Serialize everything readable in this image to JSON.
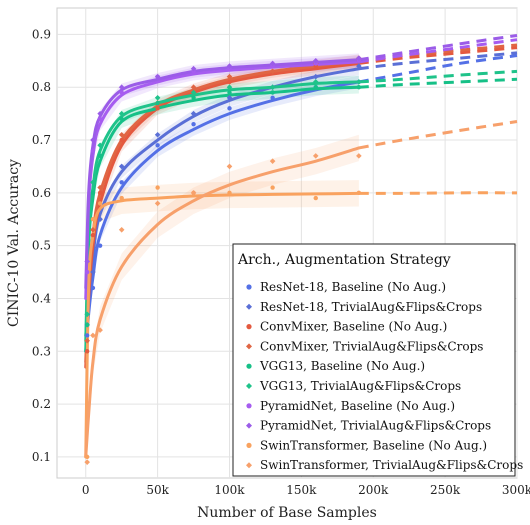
{
  "chart_data": {
    "type": "line",
    "xlabel": "Number of Base Samples",
    "ylabel": "CINIC-10 Val. Accuracy",
    "xlim": [
      -20000,
      300000
    ],
    "ylim": [
      0.06,
      0.95
    ],
    "x_ticks": [
      0,
      50000,
      100000,
      150000,
      200000,
      250000,
      300000
    ],
    "x_tick_labels": [
      "0",
      "50k",
      "100k",
      "150k",
      "200k",
      "250k",
      "300k"
    ],
    "y_ticks": [
      0.1,
      0.2,
      0.3,
      0.4,
      0.5,
      0.6,
      0.7,
      0.8,
      0.9
    ],
    "y_tick_labels": [
      "0.1",
      "0.2",
      "0.3",
      "0.4",
      "0.5",
      "0.6",
      "0.7",
      "0.8",
      "0.9"
    ],
    "grid": true,
    "observed_max_x": 190000,
    "legend": {
      "title": "Arch., Augmentation Strategy",
      "placement": "bottom-right"
    },
    "series": [
      {
        "name": "ResNet-18, Baseline (No Aug.)",
        "color": "#5470e6",
        "marker": "circle",
        "fit": [
          [
            0,
            0.3
          ],
          [
            2000,
            0.37
          ],
          [
            5000,
            0.44
          ],
          [
            10000,
            0.52
          ],
          [
            25000,
            0.61
          ],
          [
            50000,
            0.68
          ],
          [
            75000,
            0.72
          ],
          [
            100000,
            0.75
          ],
          [
            130000,
            0.775
          ],
          [
            160000,
            0.795
          ],
          [
            190000,
            0.81
          ],
          [
            220000,
            0.825
          ],
          [
            260000,
            0.845
          ],
          [
            300000,
            0.86
          ]
        ],
        "points": [
          [
            1000,
            0.33
          ],
          [
            5000,
            0.42
          ],
          [
            10000,
            0.5
          ],
          [
            25000,
            0.62
          ],
          [
            50000,
            0.69
          ],
          [
            75000,
            0.73
          ],
          [
            100000,
            0.76
          ],
          [
            130000,
            0.78
          ],
          [
            160000,
            0.8
          ],
          [
            190000,
            0.81
          ]
        ]
      },
      {
        "name": "ResNet-18, TrivialAug&Flips&Crops",
        "color": "#5a6fd6",
        "marker": "diamond",
        "fit": [
          [
            0,
            0.33
          ],
          [
            2000,
            0.4
          ],
          [
            5000,
            0.48
          ],
          [
            10000,
            0.56
          ],
          [
            25000,
            0.64
          ],
          [
            50000,
            0.7
          ],
          [
            75000,
            0.745
          ],
          [
            100000,
            0.775
          ],
          [
            130000,
            0.8
          ],
          [
            160000,
            0.82
          ],
          [
            190000,
            0.835
          ],
          [
            220000,
            0.845
          ],
          [
            260000,
            0.855
          ],
          [
            300000,
            0.865
          ]
        ],
        "points": [
          [
            1000,
            0.35
          ],
          [
            5000,
            0.45
          ],
          [
            10000,
            0.55
          ],
          [
            25000,
            0.65
          ],
          [
            50000,
            0.71
          ],
          [
            75000,
            0.75
          ],
          [
            100000,
            0.78
          ],
          [
            130000,
            0.8
          ],
          [
            160000,
            0.82
          ],
          [
            190000,
            0.84
          ]
        ]
      },
      {
        "name": "ConvMixer, Baseline (No Aug.)",
        "color": "#e4593f",
        "marker": "circle",
        "fit": [
          [
            0,
            0.27
          ],
          [
            2000,
            0.4
          ],
          [
            5000,
            0.5
          ],
          [
            10000,
            0.58
          ],
          [
            25000,
            0.69
          ],
          [
            50000,
            0.76
          ],
          [
            75000,
            0.79
          ],
          [
            100000,
            0.81
          ],
          [
            130000,
            0.825
          ],
          [
            160000,
            0.835
          ],
          [
            190000,
            0.845
          ],
          [
            220000,
            0.855
          ],
          [
            260000,
            0.865
          ],
          [
            300000,
            0.875
          ]
        ],
        "points": [
          [
            1000,
            0.3
          ],
          [
            5000,
            0.52
          ],
          [
            10000,
            0.6
          ],
          [
            25000,
            0.7
          ],
          [
            50000,
            0.76
          ],
          [
            75000,
            0.79
          ],
          [
            100000,
            0.81
          ],
          [
            130000,
            0.83
          ],
          [
            160000,
            0.84
          ],
          [
            190000,
            0.85
          ]
        ]
      },
      {
        "name": "ConvMixer, TrivialAug&Flips&Crops",
        "color": "#e06644",
        "marker": "diamond",
        "fit": [
          [
            0,
            0.28
          ],
          [
            2000,
            0.42
          ],
          [
            5000,
            0.52
          ],
          [
            10000,
            0.6
          ],
          [
            25000,
            0.7
          ],
          [
            50000,
            0.765
          ],
          [
            75000,
            0.795
          ],
          [
            100000,
            0.815
          ],
          [
            130000,
            0.83
          ],
          [
            160000,
            0.84
          ],
          [
            190000,
            0.85
          ],
          [
            220000,
            0.86
          ],
          [
            260000,
            0.87
          ],
          [
            300000,
            0.88
          ]
        ],
        "points": [
          [
            1000,
            0.32
          ],
          [
            5000,
            0.53
          ],
          [
            10000,
            0.61
          ],
          [
            25000,
            0.71
          ],
          [
            50000,
            0.77
          ],
          [
            75000,
            0.8
          ],
          [
            100000,
            0.82
          ],
          [
            130000,
            0.83
          ],
          [
            160000,
            0.845
          ],
          [
            190000,
            0.855
          ]
        ]
      },
      {
        "name": "VGG13, Baseline (No Aug.)",
        "color": "#16c087",
        "marker": "circle",
        "fit": [
          [
            0,
            0.3
          ],
          [
            2000,
            0.5
          ],
          [
            5000,
            0.59
          ],
          [
            10000,
            0.66
          ],
          [
            25000,
            0.735
          ],
          [
            50000,
            0.76
          ],
          [
            75000,
            0.775
          ],
          [
            100000,
            0.785
          ],
          [
            130000,
            0.79
          ],
          [
            160000,
            0.797
          ],
          [
            190000,
            0.8
          ],
          [
            220000,
            0.805
          ],
          [
            260000,
            0.81
          ],
          [
            300000,
            0.815
          ]
        ],
        "points": [
          [
            1000,
            0.35
          ],
          [
            5000,
            0.6
          ],
          [
            10000,
            0.67
          ],
          [
            25000,
            0.74
          ],
          [
            50000,
            0.77
          ],
          [
            75000,
            0.78
          ],
          [
            100000,
            0.79
          ],
          [
            130000,
            0.79
          ],
          [
            160000,
            0.8
          ],
          [
            190000,
            0.8
          ]
        ]
      },
      {
        "name": "VGG13, TrivialAug&Flips&Crops",
        "color": "#1fc38a",
        "marker": "diamond",
        "fit": [
          [
            0,
            0.32
          ],
          [
            2000,
            0.52
          ],
          [
            5000,
            0.61
          ],
          [
            10000,
            0.68
          ],
          [
            25000,
            0.745
          ],
          [
            50000,
            0.77
          ],
          [
            75000,
            0.785
          ],
          [
            100000,
            0.795
          ],
          [
            130000,
            0.8
          ],
          [
            160000,
            0.807
          ],
          [
            190000,
            0.81
          ],
          [
            220000,
            0.815
          ],
          [
            260000,
            0.823
          ],
          [
            300000,
            0.83
          ]
        ],
        "points": [
          [
            1000,
            0.37
          ],
          [
            5000,
            0.62
          ],
          [
            10000,
            0.69
          ],
          [
            25000,
            0.75
          ],
          [
            50000,
            0.78
          ],
          [
            75000,
            0.79
          ],
          [
            100000,
            0.8
          ],
          [
            130000,
            0.8
          ],
          [
            160000,
            0.81
          ],
          [
            190000,
            0.81
          ]
        ]
      },
      {
        "name": "PyramidNet, Baseline (No Aug.)",
        "color": "#a65cf0",
        "marker": "circle",
        "fit": [
          [
            0,
            0.4
          ],
          [
            2000,
            0.58
          ],
          [
            5000,
            0.67
          ],
          [
            10000,
            0.73
          ],
          [
            25000,
            0.785
          ],
          [
            50000,
            0.81
          ],
          [
            75000,
            0.825
          ],
          [
            100000,
            0.832
          ],
          [
            130000,
            0.838
          ],
          [
            160000,
            0.843
          ],
          [
            190000,
            0.848
          ],
          [
            220000,
            0.86
          ],
          [
            260000,
            0.875
          ],
          [
            300000,
            0.89
          ]
        ],
        "points": [
          [
            1000,
            0.45
          ],
          [
            5000,
            0.68
          ],
          [
            10000,
            0.74
          ],
          [
            25000,
            0.79
          ],
          [
            50000,
            0.82
          ],
          [
            75000,
            0.83
          ],
          [
            100000,
            0.835
          ],
          [
            130000,
            0.84
          ],
          [
            160000,
            0.845
          ],
          [
            190000,
            0.85
          ]
        ]
      },
      {
        "name": "PyramidNet, TrivialAug&Flips&Crops",
        "color": "#9b5ce8",
        "marker": "diamond",
        "fit": [
          [
            0,
            0.42
          ],
          [
            2000,
            0.6
          ],
          [
            5000,
            0.69
          ],
          [
            10000,
            0.745
          ],
          [
            25000,
            0.795
          ],
          [
            50000,
            0.815
          ],
          [
            75000,
            0.83
          ],
          [
            100000,
            0.837
          ],
          [
            130000,
            0.842
          ],
          [
            160000,
            0.847
          ],
          [
            190000,
            0.852
          ],
          [
            220000,
            0.865
          ],
          [
            260000,
            0.882
          ],
          [
            300000,
            0.898
          ]
        ],
        "points": [
          [
            1000,
            0.47
          ],
          [
            5000,
            0.7
          ],
          [
            10000,
            0.75
          ],
          [
            25000,
            0.8
          ],
          [
            50000,
            0.82
          ],
          [
            75000,
            0.835
          ],
          [
            100000,
            0.84
          ],
          [
            130000,
            0.845
          ],
          [
            160000,
            0.85
          ],
          [
            190000,
            0.855
          ]
        ]
      },
      {
        "name": "SwinTransformer, Baseline (No Aug.)",
        "color": "#f9a25f",
        "marker": "circle",
        "fit": [
          [
            0,
            0.1
          ],
          [
            2000,
            0.42
          ],
          [
            5000,
            0.52
          ],
          [
            10000,
            0.57
          ],
          [
            25000,
            0.585
          ],
          [
            50000,
            0.59
          ],
          [
            75000,
            0.594
          ],
          [
            100000,
            0.596
          ],
          [
            130000,
            0.597
          ],
          [
            160000,
            0.598
          ],
          [
            190000,
            0.599
          ],
          [
            220000,
            0.599
          ],
          [
            260000,
            0.6
          ],
          [
            300000,
            0.6
          ]
        ],
        "points": [
          [
            1000,
            0.1
          ],
          [
            5000,
            0.55
          ],
          [
            10000,
            0.58
          ],
          [
            25000,
            0.59
          ],
          [
            50000,
            0.61
          ],
          [
            75000,
            0.6
          ],
          [
            100000,
            0.6
          ],
          [
            130000,
            0.61
          ],
          [
            160000,
            0.59
          ],
          [
            190000,
            0.6
          ]
        ]
      },
      {
        "name": "SwinTransformer, TrivialAug&Flips&Crops",
        "color": "#f7a06b",
        "marker": "diamond",
        "fit": [
          [
            0,
            0.1
          ],
          [
            2000,
            0.18
          ],
          [
            5000,
            0.28
          ],
          [
            10000,
            0.36
          ],
          [
            25000,
            0.46
          ],
          [
            50000,
            0.54
          ],
          [
            75000,
            0.585
          ],
          [
            100000,
            0.615
          ],
          [
            130000,
            0.64
          ],
          [
            160000,
            0.66
          ],
          [
            190000,
            0.685
          ],
          [
            220000,
            0.7
          ],
          [
            260000,
            0.718
          ],
          [
            300000,
            0.735
          ]
        ],
        "points": [
          [
            1000,
            0.09
          ],
          [
            5000,
            0.33
          ],
          [
            10000,
            0.34
          ],
          [
            25000,
            0.53
          ],
          [
            50000,
            0.58
          ],
          [
            75000,
            0.6
          ],
          [
            100000,
            0.65
          ],
          [
            130000,
            0.66
          ],
          [
            160000,
            0.67
          ],
          [
            190000,
            0.67
          ]
        ]
      }
    ]
  }
}
